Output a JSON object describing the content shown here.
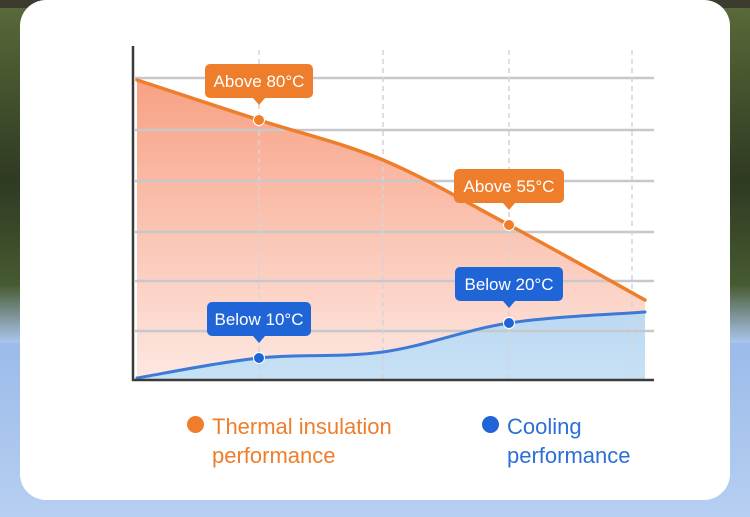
{
  "chart_data": {
    "type": "area",
    "x": [
      0,
      1,
      2,
      3,
      4
    ],
    "series": [
      {
        "name": "Thermal insulation performance",
        "color": "#ee7e2b",
        "values": [
          300,
          260,
          220,
          155,
          80
        ]
      },
      {
        "name": "Cooling performance",
        "color": "#1f65d8",
        "values": [
          2,
          22,
          28,
          57,
          68
        ]
      }
    ],
    "ylim": [
      0,
      330
    ],
    "grid": true,
    "legend_position": "bottom",
    "annotations": [
      {
        "text": "Above 80°C",
        "series": "Thermal insulation performance",
        "x": 1,
        "y": 260,
        "color": "#ee7e2b"
      },
      {
        "text": "Above 55°C",
        "series": "Thermal insulation performance",
        "x": 3,
        "y": 155,
        "color": "#ee7e2b"
      },
      {
        "text": "Below 10°C",
        "series": "Cooling performance",
        "x": 1,
        "y": 22,
        "color": "#1f65d8"
      },
      {
        "text": "Below 20°C",
        "series": "Cooling performance",
        "x": 3,
        "y": 57,
        "color": "#1f65d8"
      }
    ]
  },
  "legend": [
    {
      "label": "Thermal insulation performance",
      "color": "#ee7e2b"
    },
    {
      "label": "Cooling performance",
      "color": "#1f65d8"
    }
  ]
}
